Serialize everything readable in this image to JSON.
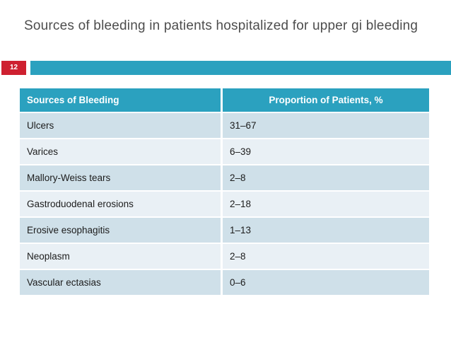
{
  "slide": {
    "title": "Sources of bleeding in patients hospitalized for upper gi bleeding",
    "page_number": "12"
  },
  "colors": {
    "accent_teal": "#2ba1bf",
    "accent_red": "#ce2030",
    "row_dark": "#cfe0e9",
    "row_light": "#e9f0f5",
    "title_text": "#4d4d4d",
    "header_text": "#ffffff",
    "cell_text": "#1c1c1c"
  },
  "chart_data": {
    "type": "table",
    "title": "Sources of bleeding in patients hospitalized for upper gi bleeding",
    "columns": [
      "Sources of Bleeding",
      "Proportion of Patients, %"
    ],
    "rows": [
      [
        "Ulcers",
        "31–67"
      ],
      [
        "Varices",
        "6–39"
      ],
      [
        "Mallory-Weiss tears",
        "2–8"
      ],
      [
        "Gastroduodenal erosions",
        "2–18"
      ],
      [
        "Erosive esophagitis",
        "1–13"
      ],
      [
        "Neoplasm",
        "2–8"
      ],
      [
        "Vascular ectasias",
        "0–6"
      ]
    ]
  },
  "table": {
    "columns": [
      "Sources of Bleeding",
      "Proportion of Patients, %"
    ],
    "rows": [
      {
        "source": "Ulcers",
        "proportion": "31–67"
      },
      {
        "source": "Varices",
        "proportion": "6–39"
      },
      {
        "source": "Mallory-Weiss tears",
        "proportion": "2–8"
      },
      {
        "source": "Gastroduodenal erosions",
        "proportion": "2–18"
      },
      {
        "source": "Erosive esophagitis",
        "proportion": "1–13"
      },
      {
        "source": "Neoplasm",
        "proportion": "2–8"
      },
      {
        "source": "Vascular ectasias",
        "proportion": "0–6"
      }
    ]
  }
}
